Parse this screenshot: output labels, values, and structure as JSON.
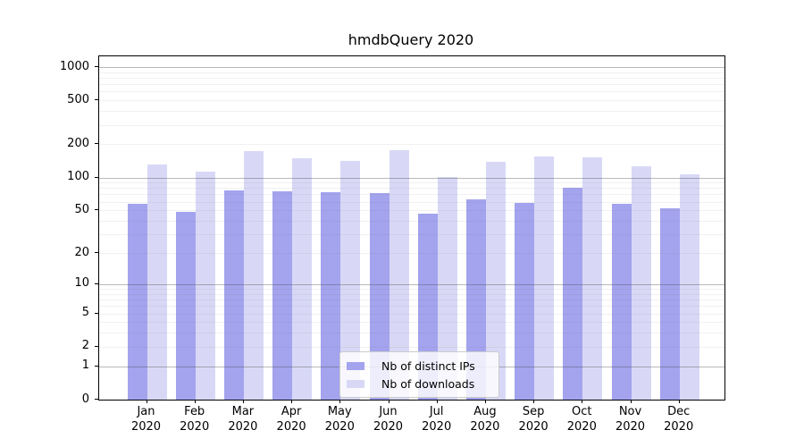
{
  "chart_data": {
    "type": "bar",
    "title": "hmdbQuery 2020",
    "months": [
      "Jan",
      "Feb",
      "Mar",
      "Apr",
      "May",
      "Jun",
      "Jul",
      "Aug",
      "Sep",
      "Oct",
      "Nov",
      "Dec"
    ],
    "year": "2020",
    "series": [
      {
        "name": "Nb of distinct IPs",
        "color": "#a3a3ee",
        "values": [
          57,
          48,
          76,
          75,
          74,
          72,
          47,
          63,
          58,
          80,
          57,
          52
        ]
      },
      {
        "name": "Nb of downloads",
        "color": "#d8d8f6",
        "values": [
          132,
          112,
          173,
          150,
          141,
          176,
          101,
          138,
          155,
          153,
          127,
          106
        ]
      }
    ],
    "yticks": [
      0,
      1,
      2,
      5,
      10,
      20,
      50,
      100,
      200,
      500,
      1000
    ],
    "yscale": "log1p",
    "ylim": [
      0,
      1250
    ],
    "grid": "horizontal, minor log gridlines",
    "legend_position": "lower center"
  }
}
